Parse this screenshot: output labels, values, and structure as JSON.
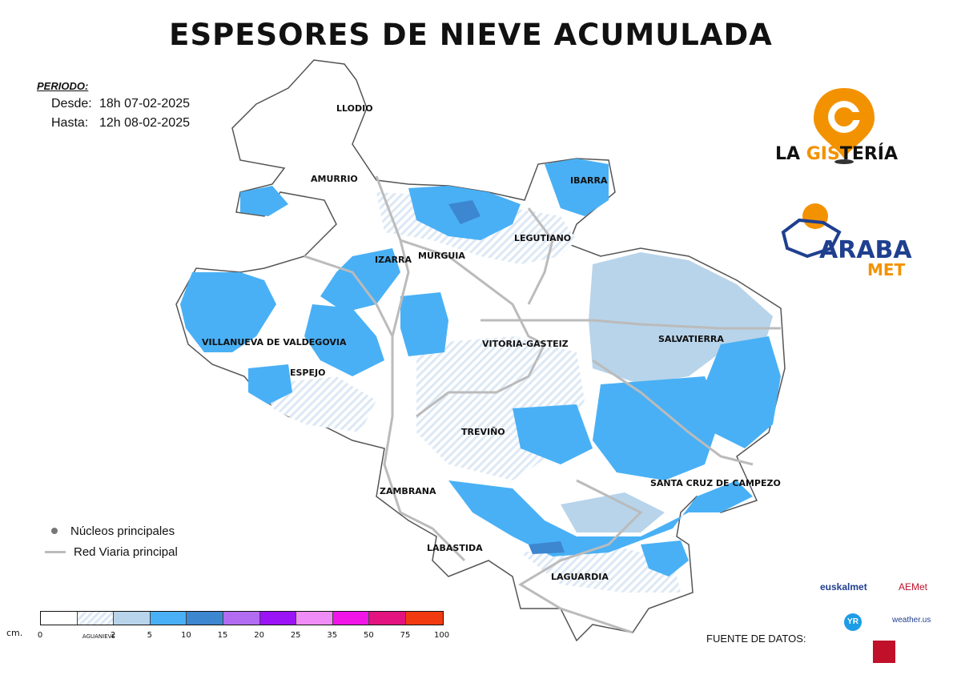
{
  "title": "ESPESORES DE NIEVE ACUMULADA",
  "period": {
    "label": "PERIODO:",
    "from_label": "Desde:",
    "from_value": "18h  07-02-2025",
    "to_label": "Hasta:",
    "to_value": "12h  08-02-2025"
  },
  "towns": [
    "LLODIO",
    "AMURRIO",
    "IBARRA",
    "LEGUTIANO",
    "IZARRA",
    "MURGUIA",
    "VILLANUEVA DE VALDEGOVIA",
    "VITORIA-GASTEIZ",
    "SALVATIERRA",
    "ESPEJO",
    "TREVIÑO",
    "ZAMBRANA",
    "SANTA CRUZ DE CAMPEZO",
    "LABASTIDA",
    "LAGUARDIA"
  ],
  "legend": {
    "nucleos": "Núcleos principales",
    "red_viaria": "Red Viaria principal"
  },
  "scale": {
    "unit": "cm.",
    "colors": [
      "#ffffff",
      "#dce8f5",
      "#b8d4ea",
      "#49b0f5",
      "#3d86d0",
      "#b26cf2",
      "#9b14f5",
      "#f08cf5",
      "#f215e8",
      "#e3137f",
      "#f23a10",
      "#ffff10"
    ],
    "labels": [
      "0",
      "AGUANIEVE",
      "2",
      "5",
      "10",
      "15",
      "20",
      "25",
      "35",
      "50",
      "75",
      "100"
    ]
  },
  "branding": {
    "gis_part1": "LA ",
    "gis_part2": "GIS",
    "gis_part3": "TERÍA",
    "araba": "ARABA",
    "met": "MET"
  },
  "sources": {
    "label": "FUENTE DE DATOS:",
    "euskalmet": "euskalmet",
    "aemet": "AEMet",
    "yr": "YR",
    "weatherus": "weather.us"
  },
  "colors": {
    "snow_light": "#b8d4ea",
    "snow_2_5": "#49b0f5",
    "snow_5_10": "#3d86d0",
    "road": "#bbbbbb",
    "accent": "#f39200"
  }
}
